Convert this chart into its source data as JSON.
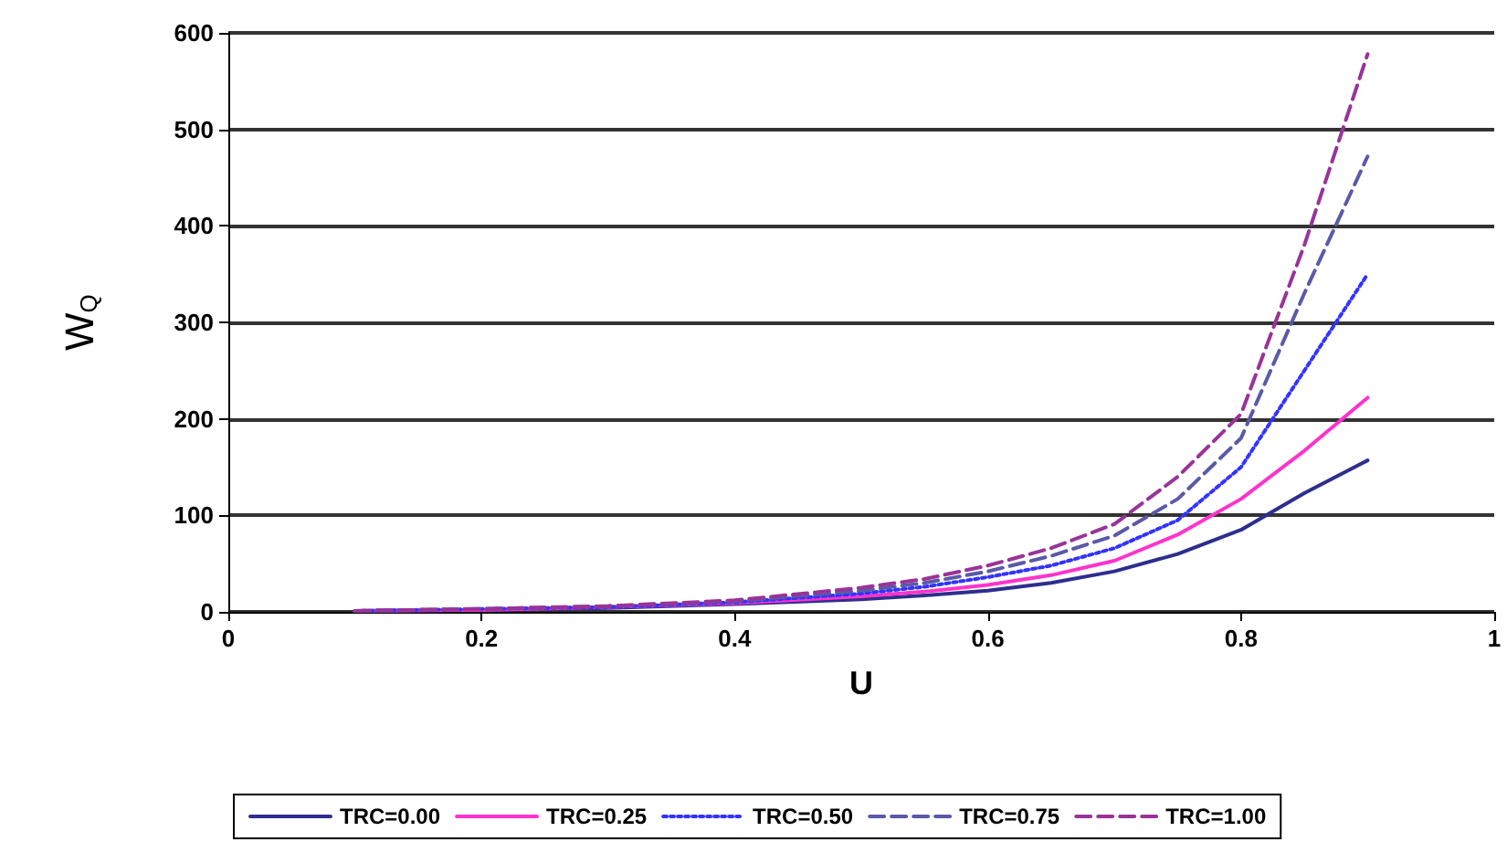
{
  "chart_data": {
    "type": "line",
    "xlabel": "U",
    "ylabel": "W$_{Q}$",
    "x": [
      0.1,
      0.2,
      0.3,
      0.4,
      0.5,
      0.55,
      0.6,
      0.65,
      0.7,
      0.75,
      0.8,
      0.85,
      0.9
    ],
    "series": [
      {
        "name": "TRC=0.00",
        "color": "#2e2e8f",
        "line_style": "solid",
        "values": [
          1,
          2,
          4,
          8,
          13,
          17,
          22,
          30,
          42,
          60,
          85,
          123,
          157
        ]
      },
      {
        "name": "TRC=0.25",
        "color": "#ff33cc",
        "line_style": "solid",
        "values": [
          1,
          2,
          5,
          9,
          16,
          21,
          28,
          38,
          53,
          80,
          117,
          167,
          222
        ]
      },
      {
        "name": "TRC=0.50",
        "color": "#3333ff",
        "line_style": "dotted",
        "values": [
          1,
          3,
          5,
          10,
          19,
          26,
          36,
          48,
          66,
          95,
          150,
          250,
          350
        ]
      },
      {
        "name": "TRC=0.75",
        "color": "#5a5aa8",
        "line_style": "dashed",
        "values": [
          1,
          3,
          6,
          11,
          22,
          30,
          42,
          58,
          79,
          117,
          180,
          330,
          472
        ]
      },
      {
        "name": "TRC=1.00",
        "color": "#993399",
        "line_style": "dashed",
        "values": [
          1,
          3,
          6,
          12,
          25,
          34,
          48,
          66,
          91,
          140,
          205,
          380,
          578
        ]
      }
    ],
    "xlim": [
      0,
      1
    ],
    "xticks": [
      0,
      0.2,
      0.4,
      0.6,
      0.8,
      1
    ],
    "ylim": [
      0,
      600
    ],
    "yticks": [
      0,
      100,
      200,
      300,
      400,
      500,
      600
    ],
    "grid": "y",
    "legend": "bottom",
    "marker": "none"
  }
}
